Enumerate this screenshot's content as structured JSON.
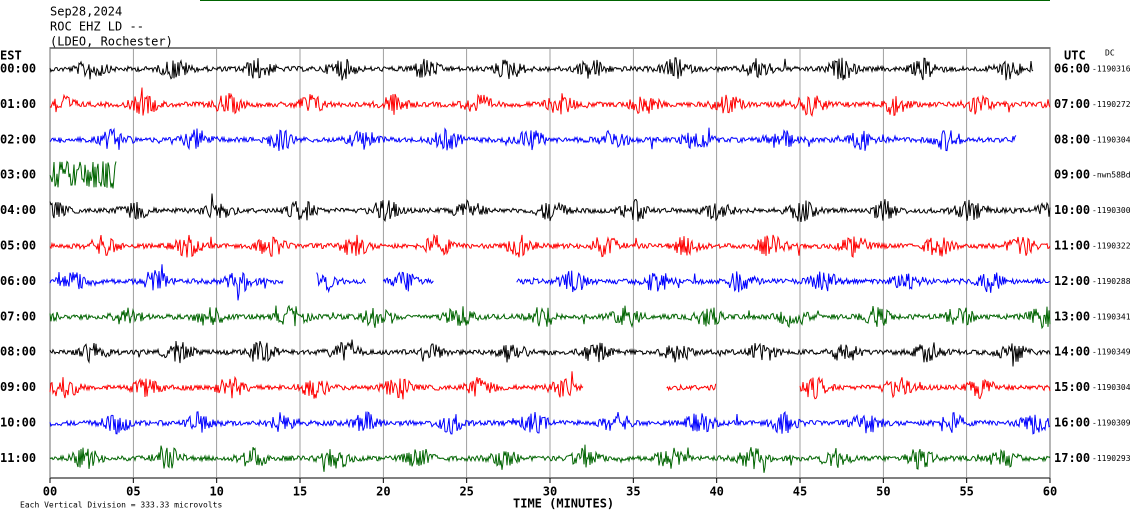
{
  "chart_data": {
    "type": "helicorder",
    "title": "Sep28,2024",
    "station": "ROC EHZ LD --",
    "location": "(LDEO, Rochester)",
    "left_axis_label": "EST",
    "right_axis_label": "UTC",
    "corner_label": "DC",
    "xlabel": "TIME (MINUTES)",
    "footnote": "Each Vertical Division =  333.33 microvolts",
    "xlim": [
      0,
      60
    ],
    "xticks": [
      {
        "value": 0,
        "label": "00"
      },
      {
        "value": 5,
        "label": "05"
      },
      10,
      15,
      20,
      25,
      30,
      35,
      40,
      45,
      50,
      55,
      60
    ],
    "grid": true,
    "rows": [
      {
        "est": "00:00",
        "utc": "06:00",
        "offset": "-1190316",
        "color": "#000000",
        "spans": [
          [
            0,
            59
          ]
        ]
      },
      {
        "est": "01:00",
        "utc": "07:00",
        "offset": "-1190272",
        "color": "#ff0000",
        "spans": [
          [
            0,
            60
          ]
        ]
      },
      {
        "est": "02:00",
        "utc": "08:00",
        "offset": "-1190304",
        "color": "#0000ff",
        "spans": [
          [
            0,
            58
          ]
        ]
      },
      {
        "est": "03:00",
        "utc": "09:00",
        "offset": "-nwn58Bd",
        "color": "#006400",
        "spans": [
          [
            0,
            4
          ]
        ]
      },
      {
        "est": "04:00",
        "utc": "10:00",
        "offset": "-1190300",
        "color": "#000000",
        "spans": [
          [
            0,
            60
          ]
        ]
      },
      {
        "est": "05:00",
        "utc": "11:00",
        "offset": "-1190322",
        "color": "#ff0000",
        "spans": [
          [
            0,
            60
          ]
        ]
      },
      {
        "est": "06:00",
        "utc": "12:00",
        "offset": "-1190288",
        "color": "#0000ff",
        "spans": [
          [
            0,
            14
          ],
          [
            16,
            19
          ],
          [
            20,
            23
          ],
          [
            28,
            60
          ]
        ]
      },
      {
        "est": "07:00",
        "utc": "13:00",
        "offset": "-1190341",
        "color": "#006400",
        "spans": [
          [
            0,
            60
          ]
        ]
      },
      {
        "est": "08:00",
        "utc": "14:00",
        "offset": "-1190349",
        "color": "#000000",
        "spans": [
          [
            0,
            60
          ]
        ]
      },
      {
        "est": "09:00",
        "utc": "15:00",
        "offset": "-1190304",
        "color": "#ff0000",
        "spans": [
          [
            0,
            32
          ],
          [
            37,
            40
          ],
          [
            45,
            60
          ]
        ]
      },
      {
        "est": "10:00",
        "utc": "16:00",
        "offset": "-1190309",
        "color": "#0000ff",
        "spans": [
          [
            0,
            60
          ]
        ]
      },
      {
        "est": "11:00",
        "utc": "17:00",
        "offset": "-1190293",
        "color": "#006400",
        "spans": [
          [
            0,
            60
          ]
        ]
      }
    ]
  }
}
